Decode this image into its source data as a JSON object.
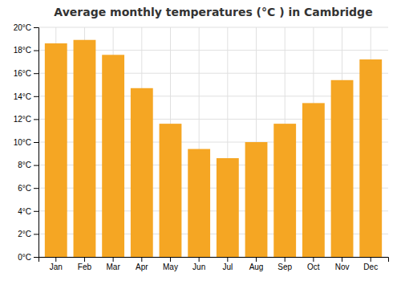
{
  "chart_data": {
    "type": "bar",
    "title": "Average monthly temperatures (°C ) in Cambridge",
    "categories": [
      "Jan",
      "Feb",
      "Mar",
      "Apr",
      "May",
      "Jun",
      "Jul",
      "Aug",
      "Sep",
      "Oct",
      "Nov",
      "Dec"
    ],
    "values": [
      18.6,
      18.9,
      17.6,
      14.7,
      11.6,
      9.4,
      8.6,
      10.0,
      11.6,
      13.4,
      15.4,
      17.2
    ],
    "color": "#F5A623",
    "ylim": [
      0,
      20
    ],
    "yticks": [
      {
        "value": 0,
        "label": "0°C"
      },
      {
        "value": 2,
        "label": "2°C"
      },
      {
        "value": 4,
        "label": "4°C"
      },
      {
        "value": 6,
        "label": "6°C"
      },
      {
        "value": 8,
        "label": "8°C"
      },
      {
        "value": 10,
        "label": "10°C"
      },
      {
        "value": 12,
        "label": "12°C"
      },
      {
        "value": 14,
        "label": "14°C"
      },
      {
        "value": 16,
        "label": "16°C"
      },
      {
        "value": 18,
        "label": "18°C"
      },
      {
        "value": 20,
        "label": "20°C"
      }
    ],
    "grid": true
  }
}
